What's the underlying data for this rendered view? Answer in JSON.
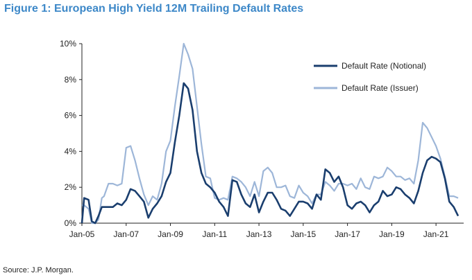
{
  "title": "Figure 1: European High Yield 12M Trailing Default Rates",
  "source": "Source: J.P. Morgan.",
  "colors": {
    "notional": "#1a3e6e",
    "issuer": "#9db6d8",
    "title": "#3d88c8"
  },
  "chart_data": {
    "type": "line",
    "title": "Figure 1: European High Yield 12M Trailing Default Rates",
    "xlabel": "",
    "ylabel": "",
    "ylim": [
      0,
      10
    ],
    "xlim": [
      2005.0,
      2022.25
    ],
    "y_ticks": [
      "0%",
      "2%",
      "4%",
      "6%",
      "8%",
      "10%"
    ],
    "y_tick_values": [
      0,
      2,
      4,
      6,
      8,
      10
    ],
    "x_ticks": [
      "Jan-05",
      "Jan-07",
      "Jan-09",
      "Jan-11",
      "Jan-13",
      "Jan-15",
      "Jan-17",
      "Jan-19",
      "Jan-21"
    ],
    "x_tick_values": [
      2005,
      2007,
      2009,
      2011,
      2013,
      2015,
      2017,
      2019,
      2021
    ],
    "grid": false,
    "legend": "top-right",
    "series": [
      {
        "name": "Default Rate (Notional)",
        "color": "#1a3e6e",
        "x": [
          2005.0,
          2005.1,
          2005.3,
          2005.45,
          2005.6,
          2005.75,
          2005.9,
          2006.0,
          2006.2,
          2006.4,
          2006.6,
          2006.8,
          2007.0,
          2007.2,
          2007.4,
          2007.6,
          2007.8,
          2008.0,
          2008.2,
          2008.4,
          2008.6,
          2008.8,
          2009.0,
          2009.2,
          2009.4,
          2009.6,
          2009.8,
          2010.0,
          2010.2,
          2010.4,
          2010.6,
          2010.8,
          2011.0,
          2011.2,
          2011.4,
          2011.6,
          2011.8,
          2012.0,
          2012.2,
          2012.4,
          2012.6,
          2012.8,
          2013.0,
          2013.2,
          2013.4,
          2013.6,
          2013.8,
          2014.0,
          2014.2,
          2014.4,
          2014.6,
          2014.8,
          2015.0,
          2015.2,
          2015.4,
          2015.6,
          2015.8,
          2016.0,
          2016.2,
          2016.4,
          2016.6,
          2016.8,
          2017.0,
          2017.2,
          2017.4,
          2017.6,
          2017.8,
          2018.0,
          2018.2,
          2018.4,
          2018.6,
          2018.8,
          2019.0,
          2019.2,
          2019.4,
          2019.6,
          2019.8,
          2020.0,
          2020.2,
          2020.4,
          2020.6,
          2020.8,
          2021.0,
          2021.2,
          2021.4,
          2021.6,
          2021.8,
          2022.0
        ],
        "values": [
          0.0,
          1.4,
          1.3,
          0.1,
          0.0,
          0.4,
          0.9,
          0.9,
          0.9,
          0.9,
          1.1,
          1.0,
          1.3,
          1.9,
          1.8,
          1.5,
          1.2,
          0.3,
          0.8,
          1.1,
          1.5,
          2.3,
          2.8,
          4.5,
          6.0,
          7.8,
          7.5,
          6.3,
          4.0,
          2.8,
          2.2,
          2.0,
          1.7,
          1.2,
          0.9,
          0.4,
          2.4,
          2.3,
          1.6,
          1.1,
          0.9,
          1.6,
          0.6,
          1.2,
          1.7,
          1.7,
          1.3,
          0.8,
          0.7,
          0.4,
          0.8,
          1.2,
          1.2,
          1.1,
          0.8,
          1.6,
          1.3,
          3.0,
          2.8,
          2.3,
          2.6,
          2.0,
          1.0,
          0.8,
          1.1,
          1.2,
          1.0,
          0.6,
          1.0,
          1.2,
          1.8,
          1.5,
          1.6,
          2.0,
          1.9,
          1.6,
          1.4,
          1.1,
          1.8,
          2.8,
          3.5,
          3.7,
          3.6,
          3.4,
          2.5,
          1.2,
          0.9,
          0.4
        ]
      },
      {
        "name": "Default Rate (Issuer)",
        "color": "#9db6d8",
        "x": [
          2005.0,
          2005.1,
          2005.3,
          2005.45,
          2005.6,
          2005.75,
          2005.9,
          2006.0,
          2006.2,
          2006.4,
          2006.6,
          2006.8,
          2007.0,
          2007.2,
          2007.4,
          2007.6,
          2007.8,
          2008.0,
          2008.2,
          2008.4,
          2008.6,
          2008.8,
          2009.0,
          2009.2,
          2009.4,
          2009.6,
          2009.8,
          2010.0,
          2010.2,
          2010.4,
          2010.6,
          2010.8,
          2011.0,
          2011.2,
          2011.4,
          2011.6,
          2011.8,
          2012.0,
          2012.2,
          2012.4,
          2012.6,
          2012.8,
          2013.0,
          2013.2,
          2013.4,
          2013.6,
          2013.8,
          2014.0,
          2014.2,
          2014.4,
          2014.6,
          2014.8,
          2015.0,
          2015.2,
          2015.4,
          2015.6,
          2015.8,
          2016.0,
          2016.2,
          2016.4,
          2016.6,
          2016.8,
          2017.0,
          2017.2,
          2017.4,
          2017.6,
          2017.8,
          2018.0,
          2018.2,
          2018.4,
          2018.6,
          2018.8,
          2019.0,
          2019.2,
          2019.4,
          2019.6,
          2019.8,
          2020.0,
          2020.2,
          2020.4,
          2020.6,
          2020.8,
          2021.0,
          2021.2,
          2021.4,
          2021.6,
          2021.8,
          2022.0
        ],
        "values": [
          1.0,
          1.0,
          0.8,
          0.0,
          0.0,
          0.2,
          1.4,
          1.5,
          2.2,
          2.2,
          2.1,
          2.2,
          4.2,
          4.3,
          3.5,
          2.5,
          1.6,
          1.0,
          1.5,
          1.3,
          2.2,
          4.0,
          4.6,
          6.5,
          8.2,
          10.0,
          9.4,
          8.6,
          6.5,
          4.4,
          2.6,
          2.5,
          1.4,
          1.3,
          1.4,
          1.3,
          2.6,
          2.5,
          2.3,
          2.0,
          1.5,
          2.3,
          1.5,
          2.9,
          3.1,
          2.8,
          2.0,
          2.0,
          2.1,
          1.5,
          1.4,
          2.1,
          1.7,
          1.5,
          1.1,
          1.6,
          1.6,
          2.3,
          2.1,
          1.8,
          2.2,
          2.2,
          2.1,
          2.2,
          1.9,
          2.5,
          2.0,
          1.9,
          2.6,
          2.5,
          2.6,
          3.1,
          2.9,
          2.6,
          2.6,
          2.4,
          2.5,
          2.2,
          3.5,
          5.6,
          5.3,
          4.8,
          4.3,
          3.6,
          2.6,
          1.5,
          1.5,
          1.4
        ]
      }
    ]
  }
}
